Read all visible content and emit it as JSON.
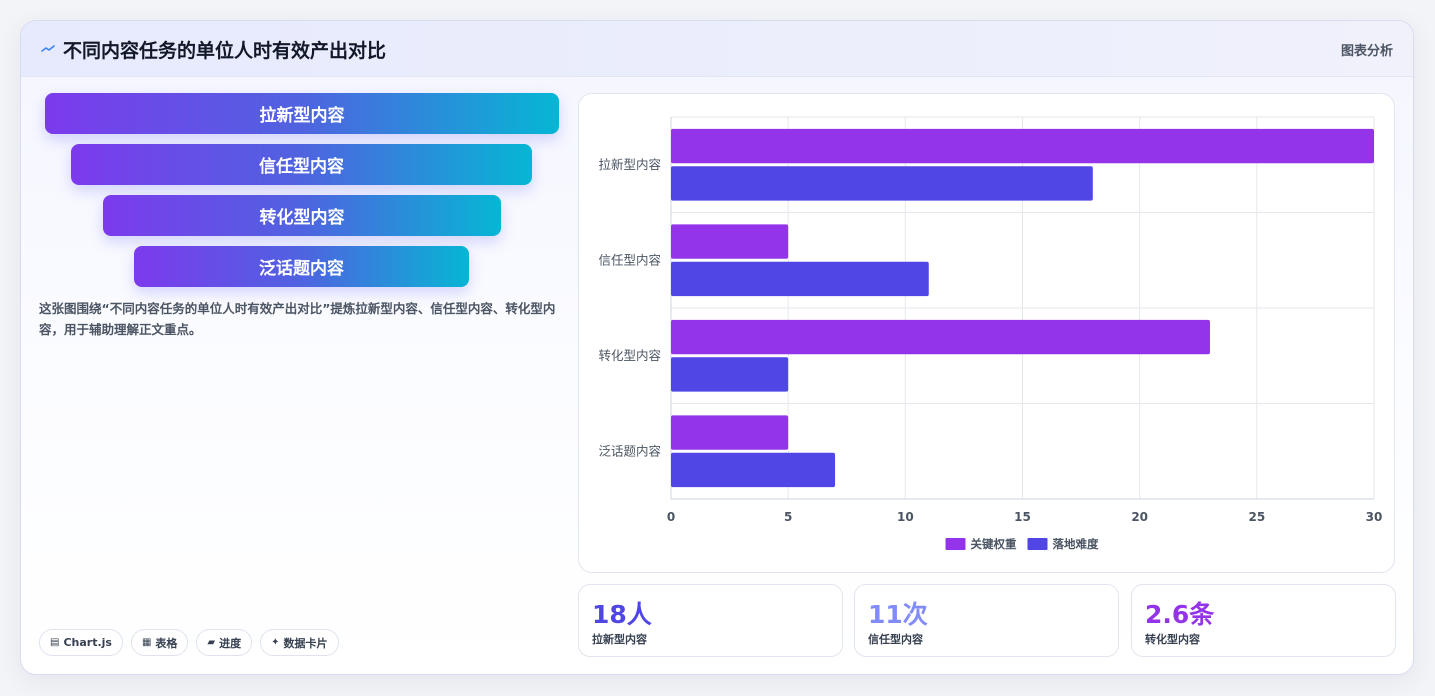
{
  "header": {
    "title": "不同内容任务的单位人时有效产出对比",
    "badge": "图表分析",
    "icon": "spark-line-icon"
  },
  "funnel": {
    "layers": [
      "拉新型内容",
      "信任型内容",
      "转化型内容",
      "泛话题内容"
    ]
  },
  "description": "这张图围绕“不同内容任务的单位人时有效产出对比”提炼拉新型内容、信任型内容、转化型内容，用于辅助理解正文重点。",
  "tags": [
    {
      "icon": "chart-icon",
      "glyph": "▤",
      "label": "Chart.js"
    },
    {
      "icon": "table-icon",
      "glyph": "▦",
      "label": "表格"
    },
    {
      "icon": "progress-icon",
      "glyph": "▰",
      "label": "进度"
    },
    {
      "icon": "card-icon",
      "glyph": "✦",
      "label": "数据卡片"
    }
  ],
  "colors": {
    "series1": "#9333ea",
    "series2": "#4f46e5",
    "stat1": "#4f46e5",
    "stat2": "#818cf8",
    "stat3": "#9333ea"
  },
  "chart_data": {
    "type": "bar",
    "orientation": "horizontal",
    "categories": [
      "拉新型内容",
      "信任型内容",
      "转化型内容",
      "泛话题内容"
    ],
    "series": [
      {
        "name": "关键权重",
        "values": [
          30,
          5,
          23,
          5
        ],
        "color": "#9333ea"
      },
      {
        "name": "落地难度",
        "values": [
          18,
          11,
          5,
          7
        ],
        "color": "#4f46e5"
      }
    ],
    "xlim": [
      0,
      30
    ],
    "xticks": [
      0,
      5,
      10,
      15,
      20,
      25,
      30
    ],
    "grid": true,
    "legend": "bottom"
  },
  "stats": [
    {
      "value": "18人",
      "label": "拉新型内容"
    },
    {
      "value": "11次",
      "label": "信任型内容"
    },
    {
      "value": "2.6条",
      "label": "转化型内容"
    }
  ]
}
